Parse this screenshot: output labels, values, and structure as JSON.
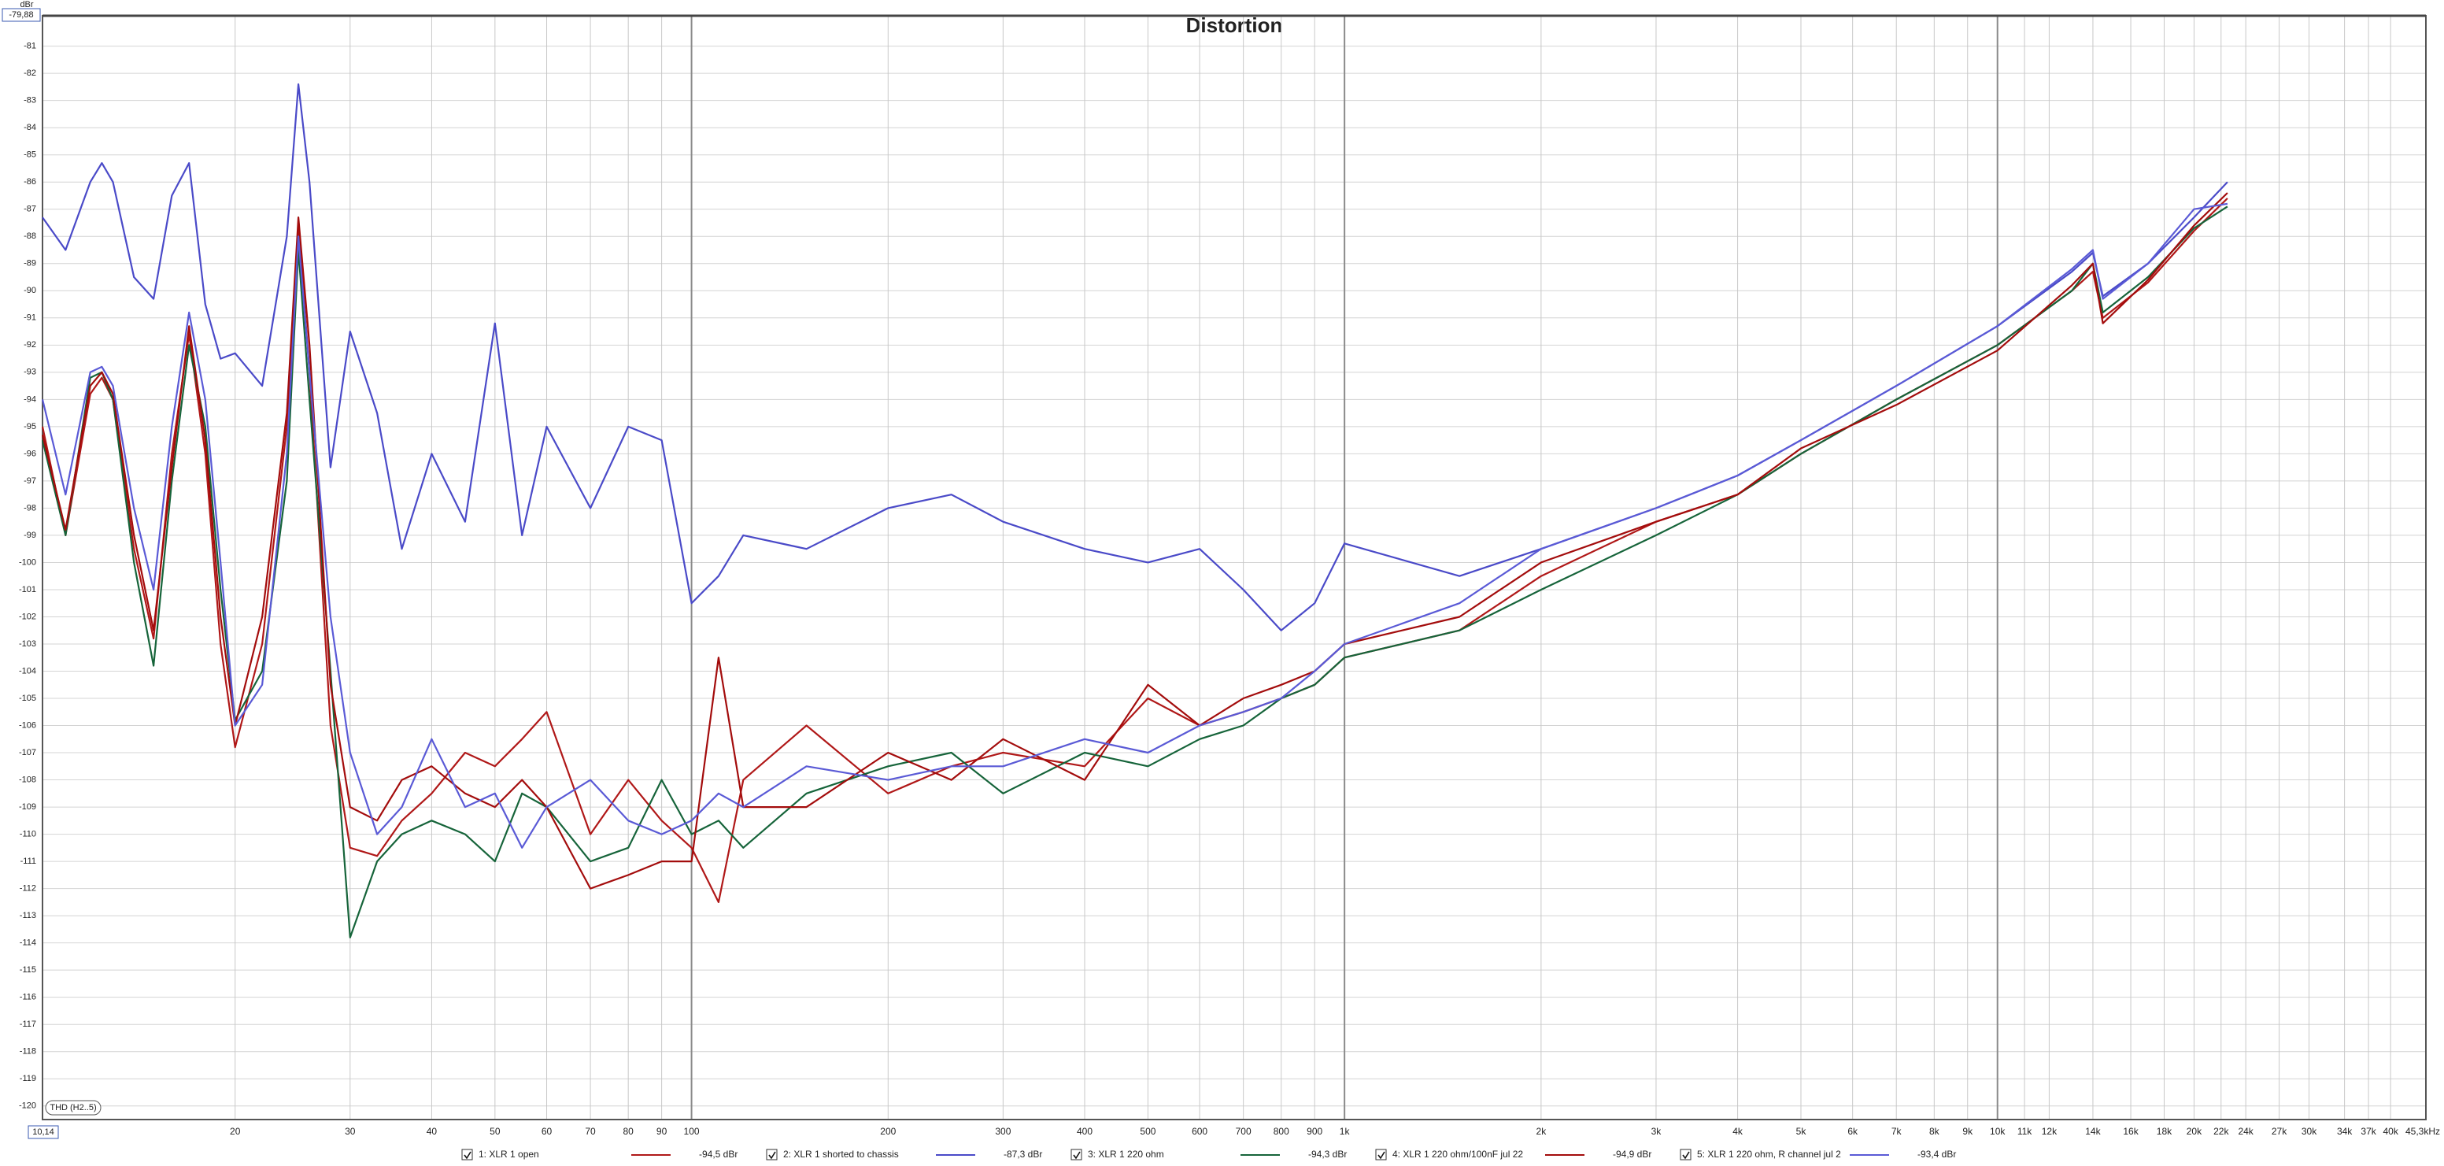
{
  "chart_data": {
    "type": "line",
    "title": "Distortion",
    "y_unit": "dBr",
    "annotation": "THD (H2..5)",
    "log_x": true,
    "grid": true,
    "xlim": [
      10.14,
      45300
    ],
    "ylim": [
      -120.5,
      -79.88
    ],
    "xticks": [
      {
        "value": 10.14,
        "label": "10,14"
      },
      20,
      30,
      40,
      50,
      60,
      70,
      80,
      90,
      100,
      200,
      300,
      400,
      500,
      600,
      700,
      800,
      900,
      {
        "value": 1000,
        "label": "1k"
      },
      {
        "value": 2000,
        "label": "2k"
      },
      {
        "value": 3000,
        "label": "3k"
      },
      {
        "value": 4000,
        "label": "4k"
      },
      {
        "value": 5000,
        "label": "5k"
      },
      {
        "value": 6000,
        "label": "6k"
      },
      {
        "value": 7000,
        "label": "7k"
      },
      {
        "value": 8000,
        "label": "8k"
      },
      {
        "value": 9000,
        "label": "9k"
      },
      {
        "value": 10000,
        "label": "10k"
      },
      {
        "value": 11000,
        "label": "11k"
      },
      {
        "value": 12000,
        "label": "12k"
      },
      {
        "value": 14000,
        "label": "14k"
      },
      {
        "value": 16000,
        "label": "16k"
      },
      {
        "value": 18000,
        "label": "18k"
      },
      {
        "value": 20000,
        "label": "20k"
      },
      {
        "value": 22000,
        "label": "22k"
      },
      {
        "value": 24000,
        "label": "24k"
      },
      {
        "value": 27000,
        "label": "27k"
      },
      {
        "value": 30000,
        "label": "30k"
      },
      {
        "value": 34000,
        "label": "34k"
      },
      {
        "value": 37000,
        "label": "37k"
      },
      {
        "value": 40000,
        "label": "40k"
      },
      {
        "value": 45300,
        "label": "45,3kHz"
      }
    ],
    "yticks": [
      {
        "value": -79.88,
        "label": "-79,88"
      },
      -81,
      -82,
      -83,
      -84,
      -85,
      -86,
      -87,
      -88,
      -89,
      -90,
      -91,
      -92,
      -93,
      -94,
      -95,
      -96,
      -97,
      -98,
      -99,
      -100,
      -101,
      -102,
      -103,
      -104,
      -105,
      -106,
      -107,
      -108,
      -109,
      -110,
      -111,
      -112,
      -113,
      -114,
      -115,
      -116,
      -117,
      -118,
      -119,
      -120
    ],
    "x": [
      10.14,
      11,
      12,
      12.5,
      13,
      14,
      15,
      16,
      17,
      18,
      19,
      20,
      22,
      24,
      25,
      26,
      28,
      30,
      33,
      36,
      40,
      45,
      50,
      55,
      60,
      70,
      80,
      90,
      100,
      110,
      120,
      150,
      200,
      250,
      300,
      400,
      500,
      600,
      700,
      800,
      900,
      1000,
      1500,
      2000,
      3000,
      4000,
      5000,
      7000,
      10000,
      13000,
      14000,
      14500,
      17000,
      20000,
      22500
    ],
    "series": [
      {
        "name": "1: XLR 1 open",
        "readout": "-94,5 dBr",
        "color": "#b01818",
        "values": [
          -95,
          -99,
          -93.8,
          -93.2,
          -94,
          -99.5,
          -102.8,
          -96,
          -91.6,
          -96,
          -103,
          -106.8,
          -103,
          -95,
          -87.6,
          -93,
          -106,
          -110.5,
          -110.8,
          -109.5,
          -108.5,
          -107,
          -107.5,
          -106.5,
          -105.5,
          -110,
          -108,
          -109.5,
          -110.5,
          -112.5,
          -108,
          -106,
          -108.5,
          -107.5,
          -107,
          -107.5,
          -105,
          -106,
          -105.5,
          -105,
          -104.5,
          -103.5,
          -102.5,
          -100.5,
          -98.5,
          -97.5,
          -96,
          -94,
          -92,
          -90,
          -89.3,
          -91,
          -89.7,
          -87.8,
          -86.6
        ]
      },
      {
        "name": "2: XLR 1 shorted to chassis",
        "readout": "-87,3 dBr",
        "color": "#4a4ac8",
        "values": [
          -87.3,
          -88.5,
          -86,
          -85.3,
          -86,
          -89.5,
          -90.3,
          -86.5,
          -85.3,
          -90.5,
          -92.5,
          -92.3,
          -93.5,
          -88,
          -82.4,
          -86,
          -96.5,
          -91.5,
          -94.5,
          -99.5,
          -96,
          -98.5,
          -91.2,
          -99,
          -95,
          -98,
          -95,
          -95.5,
          -101.5,
          -100.5,
          -99,
          -99.5,
          -98,
          -97.5,
          -98.5,
          -99.5,
          -100,
          -99.5,
          -101,
          -102.5,
          -101.5,
          -99.3,
          -100.5,
          -99.5,
          -98,
          -96.8,
          -95.5,
          -93.5,
          -91.3,
          -89.3,
          -88.6,
          -90.2,
          -89,
          -87.3,
          -86
        ]
      },
      {
        "name": "3: XLR 1 220 ohm",
        "readout": "-94,3 dBr",
        "color": "#16643a",
        "values": [
          -95.5,
          -99,
          -93.2,
          -93,
          -94,
          -100,
          -103.8,
          -97,
          -92,
          -95,
          -101,
          -105.8,
          -104,
          -97,
          -88.5,
          -94,
          -104,
          -113.8,
          -111,
          -110,
          -109.5,
          -110,
          -111,
          -108.5,
          -109,
          -111,
          -110.5,
          -108,
          -110,
          -109.5,
          -110.5,
          -108.5,
          -107.5,
          -107,
          -108.5,
          -107,
          -107.5,
          -106.5,
          -106,
          -105,
          -104.5,
          -103.5,
          -102.5,
          -101,
          -99,
          -97.5,
          -96,
          -94,
          -92,
          -90,
          -89,
          -90.8,
          -89.5,
          -87.7,
          -86.9
        ]
      },
      {
        "name": "4: XLR 1 220 ohm/100nF jul 22",
        "readout": "-94,9 dBr",
        "color": "#a30c0c",
        "values": [
          -95.3,
          -98.8,
          -93.5,
          -93,
          -93.8,
          -99,
          -102.5,
          -96.5,
          -91.3,
          -95.5,
          -102,
          -106,
          -102,
          -94.5,
          -87.3,
          -92,
          -104.5,
          -109,
          -109.5,
          -108,
          -107.5,
          -108.5,
          -109,
          -108,
          -109,
          -112,
          -111.5,
          -111,
          -111,
          -103.5,
          -109,
          -109,
          -107,
          -108,
          -106.5,
          -108,
          -104.5,
          -106,
          -105,
          -104.5,
          -104,
          -103,
          -102,
          -100,
          -98.5,
          -97.5,
          -95.8,
          -94.2,
          -92.2,
          -89.8,
          -89,
          -91.2,
          -89.6,
          -87.6,
          -86.4
        ]
      },
      {
        "name": "5: XLR 1 220 ohm, R channel jul 2",
        "readout": "-93,4 dBr",
        "color": "#5a5ad6",
        "values": [
          -94,
          -97.5,
          -93,
          -92.8,
          -93.5,
          -98,
          -101,
          -95,
          -90.8,
          -94,
          -100,
          -106,
          -104.5,
          -96,
          -88,
          -93,
          -102,
          -107,
          -110,
          -109,
          -106.5,
          -109,
          -108.5,
          -110.5,
          -109,
          -108,
          -109.5,
          -110,
          -109.5,
          -108.5,
          -109,
          -107.5,
          -108,
          -107.5,
          -107.5,
          -106.5,
          -107,
          -106,
          -105.5,
          -105,
          -104,
          -103,
          -101.5,
          -99.5,
          -98,
          -96.8,
          -95.5,
          -93.5,
          -91.3,
          -89.2,
          -88.5,
          -90.3,
          -89,
          -87,
          -86.8
        ]
      }
    ]
  }
}
